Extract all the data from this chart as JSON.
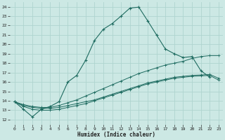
{
  "xlabel": "Humidex (Indice chaleur)",
  "bg_color": "#cce8e4",
  "grid_color": "#afd4cf",
  "line_color": "#1e6b60",
  "ylim": [
    11.5,
    24.5
  ],
  "xlim": [
    -0.5,
    23.5
  ],
  "yticks": [
    12,
    13,
    14,
    15,
    16,
    17,
    18,
    19,
    20,
    21,
    22,
    23,
    24
  ],
  "xticks": [
    0,
    1,
    2,
    3,
    4,
    5,
    6,
    7,
    8,
    9,
    10,
    11,
    12,
    13,
    14,
    15,
    16,
    17,
    18,
    19,
    20,
    21,
    22,
    23
  ],
  "main_line": {
    "x": [
      0,
      1,
      2,
      3,
      4,
      5,
      6,
      7,
      8,
      9,
      10,
      11,
      12,
      13,
      14,
      15,
      16,
      17,
      18,
      19,
      20,
      21,
      22
    ],
    "y": [
      13.9,
      13.1,
      12.3,
      13.1,
      13.4,
      13.9,
      16.0,
      16.7,
      18.3,
      20.4,
      21.6,
      22.2,
      23.0,
      23.85,
      23.95,
      22.5,
      21.0,
      19.5,
      19.0,
      18.6,
      18.7,
      17.2,
      16.5
    ]
  },
  "secondary_lines": [
    {
      "x": [
        0,
        1,
        2,
        3,
        4,
        5,
        6,
        7,
        8,
        9,
        10,
        11,
        12,
        13,
        14,
        15,
        16,
        17,
        18,
        19,
        20,
        21,
        22,
        23
      ],
      "y": [
        13.9,
        13.5,
        13.3,
        13.2,
        13.2,
        13.3,
        13.5,
        13.7,
        13.9,
        14.1,
        14.4,
        14.7,
        15.0,
        15.3,
        15.6,
        15.9,
        16.1,
        16.3,
        16.5,
        16.6,
        16.7,
        16.75,
        16.8,
        16.4
      ]
    },
    {
      "x": [
        0,
        1,
        2,
        3,
        4,
        5,
        6,
        7,
        8,
        9,
        10,
        11,
        12,
        13,
        14,
        15,
        16,
        17,
        18,
        19,
        20,
        21,
        22,
        23
      ],
      "y": [
        13.9,
        13.6,
        13.4,
        13.3,
        13.3,
        13.5,
        13.8,
        14.1,
        14.5,
        14.9,
        15.3,
        15.7,
        16.1,
        16.5,
        16.9,
        17.2,
        17.5,
        17.8,
        18.0,
        18.2,
        18.5,
        18.7,
        18.8,
        18.8
      ]
    },
    {
      "x": [
        0,
        1,
        2,
        3,
        4,
        5,
        6,
        7,
        8,
        9,
        10,
        11,
        12,
        13,
        14,
        15,
        16,
        17,
        18,
        19,
        20,
        21,
        22,
        23
      ],
      "y": [
        13.9,
        13.4,
        13.1,
        13.0,
        13.0,
        13.1,
        13.3,
        13.5,
        13.7,
        14.0,
        14.3,
        14.6,
        14.9,
        15.2,
        15.5,
        15.8,
        16.0,
        16.2,
        16.4,
        16.5,
        16.6,
        16.65,
        16.7,
        16.2
      ]
    }
  ]
}
